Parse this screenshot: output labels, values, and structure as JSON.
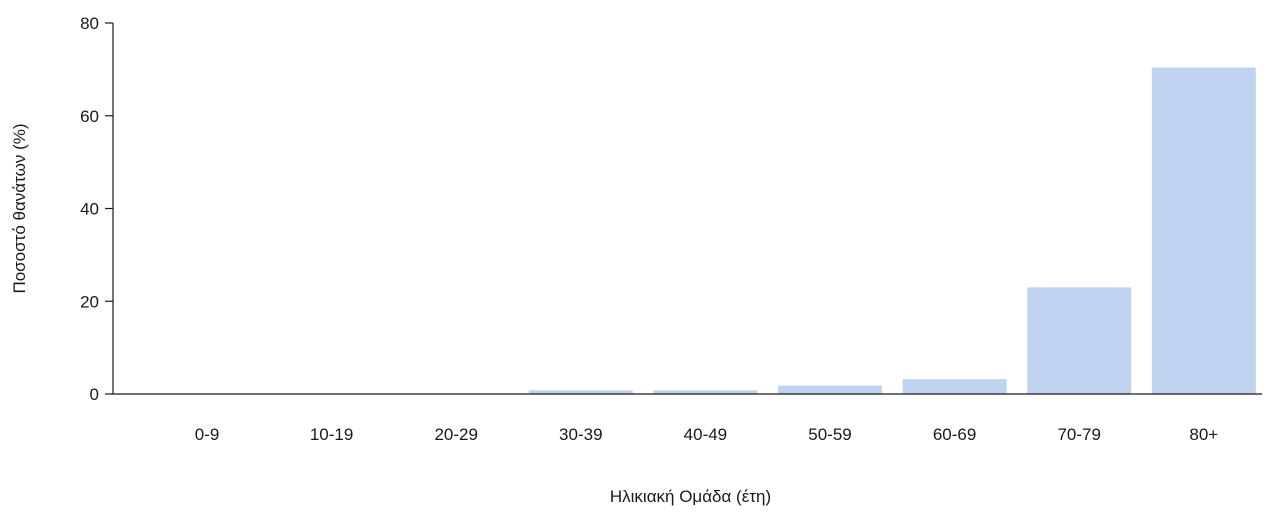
{
  "chart_data": {
    "type": "bar",
    "title": "",
    "xlabel": "Ηλικιακή Ομάδα (έτη)",
    "ylabel": "Ποσοστό θανάτων (%)",
    "categories": [
      "0-9",
      "10-19",
      "20-29",
      "30-39",
      "40-49",
      "50-59",
      "60-69",
      "70-79",
      "80+"
    ],
    "values": [
      0,
      0,
      0,
      0.8,
      0.8,
      1.8,
      3.2,
      23.0,
      70.4
    ],
    "ylim": [
      0,
      80
    ],
    "yticks": [
      0,
      20,
      40,
      60,
      80
    ],
    "grid": false,
    "legend": "none",
    "bar_color": "#bfd3f0"
  }
}
